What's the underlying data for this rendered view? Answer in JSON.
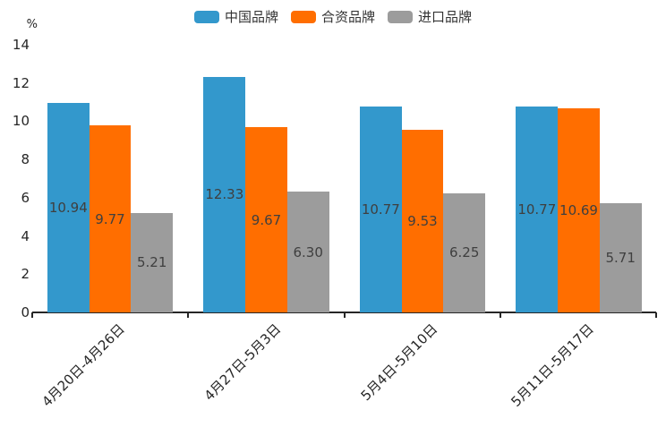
{
  "chart_data": {
    "type": "bar",
    "title": "",
    "ylabel": "%",
    "xlabel": "",
    "categories": [
      "4月20日-4月26日",
      "4月27日-5月3日",
      "5月4日-5月10日",
      "5月11日-5月17日"
    ],
    "series": [
      {
        "name": "中国品牌",
        "color": "#3398CC",
        "values": [
          10.94,
          12.33,
          10.77,
          10.77
        ]
      },
      {
        "name": "合资品牌",
        "color": "#FF6E00",
        "values": [
          9.77,
          9.67,
          9.53,
          10.69
        ]
      },
      {
        "name": "进口品牌",
        "color": "#9C9C9C",
        "values": [
          5.21,
          6.3,
          6.25,
          5.71
        ]
      }
    ],
    "yticks": [
      0,
      2,
      4,
      6,
      8,
      10,
      12,
      14
    ],
    "ylim": [
      0,
      14
    ],
    "value_label_decimals": 2,
    "value_label_color": "#3F3F3F",
    "axis_color": "#262626",
    "legend_position": "top",
    "grid": false
  }
}
